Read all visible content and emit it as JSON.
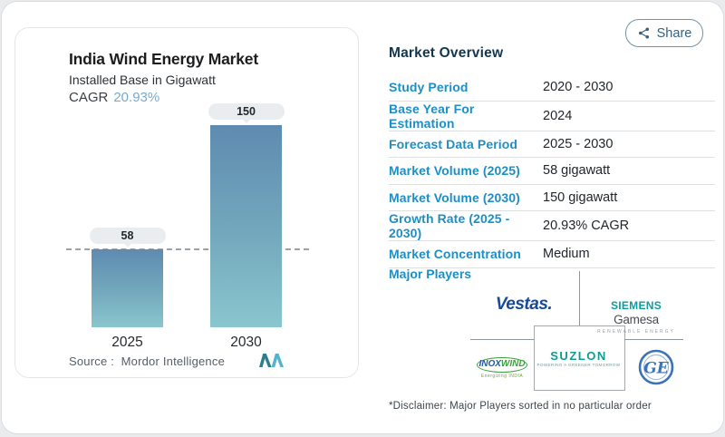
{
  "share": {
    "label": "Share"
  },
  "chart_panel": {
    "title": "India Wind Energy Market",
    "subtitle": "Installed Base in Gigawatt",
    "cagr_label": "CAGR",
    "cagr_value": "20.93%",
    "source": "Source :  Mordor Intelligence"
  },
  "chart_data": {
    "type": "bar",
    "categories": [
      "2025",
      "2030"
    ],
    "values": [
      58,
      150
    ],
    "value_labels": [
      "58",
      "150"
    ],
    "title": "India Wind Energy Market",
    "subtitle": "Installed Base in Gigawatt",
    "unit": "gigawatt",
    "reference_line": 58,
    "ylim": [
      0,
      160
    ],
    "grid": "off",
    "bar_gradient": [
      "#5e8bb0",
      "#8ac6ce"
    ]
  },
  "overview": {
    "title": "Market Overview",
    "rows": [
      {
        "label": "Study Period",
        "value": "2020 - 2030"
      },
      {
        "label": "Base Year For Estimation",
        "value": "2024"
      },
      {
        "label": "Forecast Data Period",
        "value": "2025 - 2030"
      },
      {
        "label": "Market Volume (2025)",
        "value": "58 gigawatt"
      },
      {
        "label": "Market Volume (2030)",
        "value": "150 gigawatt"
      },
      {
        "label": "Growth Rate (2025 - 2030)",
        "value": "20.93% CAGR"
      },
      {
        "label": "Market Concentration",
        "value": "Medium"
      }
    ],
    "major_players_label": "Major Players",
    "players": {
      "vestas": "Vestas.",
      "siemens": "SIEMENS",
      "gamesa": "Gamesa",
      "siemens_sub": "RENEWABLE ENERGY",
      "inox": "INOX",
      "wind": "WIND",
      "inox_sub": "Energizing INDIA",
      "suzlon": "SUZLON",
      "suzlon_sub": "POWERING A GREENER TOMORROW",
      "ge": "GE"
    },
    "disclaimer": "*Disclaimer: Major Players sorted in no particular order"
  },
  "colors": {
    "label_blue": "#1d8fc6",
    "heading_navy": "#14364d",
    "cagr_blue": "#74aad0",
    "bar_top": "#5e8bb0",
    "bar_bottom": "#8ac6ce",
    "share_text": "#33617e"
  }
}
